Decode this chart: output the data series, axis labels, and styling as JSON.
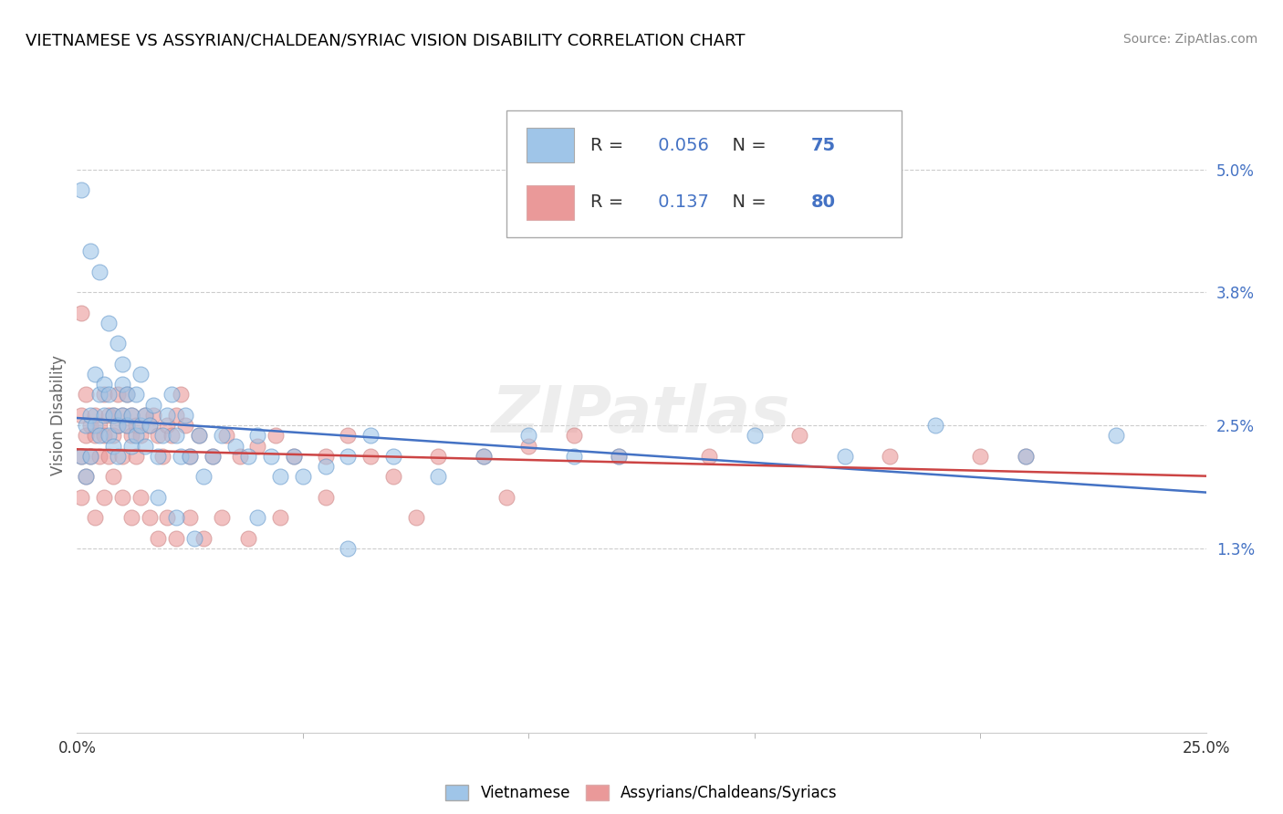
{
  "title": "VIETNAMESE VS ASSYRIAN/CHALDEAN/SYRIAC VISION DISABILITY CORRELATION CHART",
  "source": "Source: ZipAtlas.com",
  "ylabel": "Vision Disability",
  "xlim": [
    0.0,
    0.25
  ],
  "ylim": [
    -0.005,
    0.057
  ],
  "xtick_positions": [
    0.0,
    0.25
  ],
  "xticklabels": [
    "0.0%",
    "25.0%"
  ],
  "yticks_right": [
    0.013,
    0.025,
    0.038,
    0.05
  ],
  "yticklabels_right": [
    "1.3%",
    "2.5%",
    "3.8%",
    "5.0%"
  ],
  "R_blue": 0.056,
  "N_blue": 75,
  "R_pink": 0.137,
  "N_pink": 80,
  "blue_color": "#9fc5e8",
  "pink_color": "#ea9999",
  "line_blue": "#4472c4",
  "line_pink": "#cc4444",
  "legend_entry1": "Vietnamese",
  "legend_entry2": "Assyrians/Chaldeans/Syriacs",
  "blue_x": [
    0.001,
    0.002,
    0.002,
    0.003,
    0.003,
    0.004,
    0.004,
    0.005,
    0.005,
    0.006,
    0.006,
    0.007,
    0.007,
    0.008,
    0.008,
    0.009,
    0.009,
    0.01,
    0.01,
    0.011,
    0.011,
    0.012,
    0.012,
    0.013,
    0.013,
    0.014,
    0.015,
    0.015,
    0.016,
    0.017,
    0.018,
    0.019,
    0.02,
    0.021,
    0.022,
    0.023,
    0.024,
    0.025,
    0.027,
    0.028,
    0.03,
    0.032,
    0.035,
    0.038,
    0.04,
    0.043,
    0.045,
    0.048,
    0.05,
    0.055,
    0.06,
    0.065,
    0.07,
    0.08,
    0.09,
    0.1,
    0.11,
    0.12,
    0.15,
    0.17,
    0.19,
    0.21,
    0.23,
    0.001,
    0.003,
    0.005,
    0.007,
    0.009,
    0.01,
    0.014,
    0.018,
    0.022,
    0.026,
    0.04,
    0.06
  ],
  "blue_y": [
    0.022,
    0.02,
    0.025,
    0.022,
    0.026,
    0.025,
    0.03,
    0.024,
    0.028,
    0.026,
    0.029,
    0.024,
    0.028,
    0.023,
    0.026,
    0.025,
    0.022,
    0.026,
    0.029,
    0.025,
    0.028,
    0.023,
    0.026,
    0.024,
    0.028,
    0.025,
    0.026,
    0.023,
    0.025,
    0.027,
    0.022,
    0.024,
    0.026,
    0.028,
    0.024,
    0.022,
    0.026,
    0.022,
    0.024,
    0.02,
    0.022,
    0.024,
    0.023,
    0.022,
    0.024,
    0.022,
    0.02,
    0.022,
    0.02,
    0.021,
    0.022,
    0.024,
    0.022,
    0.02,
    0.022,
    0.024,
    0.022,
    0.022,
    0.024,
    0.022,
    0.025,
    0.022,
    0.024,
    0.048,
    0.042,
    0.04,
    0.035,
    0.033,
    0.031,
    0.03,
    0.018,
    0.016,
    0.014,
    0.016,
    0.013
  ],
  "pink_x": [
    0.001,
    0.001,
    0.002,
    0.002,
    0.003,
    0.003,
    0.004,
    0.004,
    0.005,
    0.005,
    0.006,
    0.006,
    0.007,
    0.007,
    0.008,
    0.008,
    0.009,
    0.009,
    0.01,
    0.01,
    0.011,
    0.011,
    0.012,
    0.012,
    0.013,
    0.013,
    0.014,
    0.015,
    0.016,
    0.017,
    0.018,
    0.019,
    0.02,
    0.021,
    0.022,
    0.023,
    0.024,
    0.025,
    0.027,
    0.03,
    0.033,
    0.036,
    0.04,
    0.044,
    0.048,
    0.055,
    0.06,
    0.065,
    0.07,
    0.08,
    0.09,
    0.1,
    0.11,
    0.12,
    0.14,
    0.16,
    0.18,
    0.2,
    0.21,
    0.001,
    0.002,
    0.004,
    0.006,
    0.008,
    0.01,
    0.012,
    0.014,
    0.016,
    0.018,
    0.02,
    0.022,
    0.025,
    0.028,
    0.032,
    0.038,
    0.045,
    0.055,
    0.075,
    0.095,
    0.001
  ],
  "pink_y": [
    0.022,
    0.026,
    0.024,
    0.028,
    0.025,
    0.022,
    0.026,
    0.024,
    0.022,
    0.025,
    0.028,
    0.024,
    0.026,
    0.022,
    0.024,
    0.026,
    0.025,
    0.028,
    0.026,
    0.022,
    0.025,
    0.028,
    0.024,
    0.026,
    0.025,
    0.022,
    0.024,
    0.026,
    0.025,
    0.026,
    0.024,
    0.022,
    0.025,
    0.024,
    0.026,
    0.028,
    0.025,
    0.022,
    0.024,
    0.022,
    0.024,
    0.022,
    0.023,
    0.024,
    0.022,
    0.022,
    0.024,
    0.022,
    0.02,
    0.022,
    0.022,
    0.023,
    0.024,
    0.022,
    0.022,
    0.024,
    0.022,
    0.022,
    0.022,
    0.018,
    0.02,
    0.016,
    0.018,
    0.02,
    0.018,
    0.016,
    0.018,
    0.016,
    0.014,
    0.016,
    0.014,
    0.016,
    0.014,
    0.016,
    0.014,
    0.016,
    0.018,
    0.016,
    0.018,
    0.036
  ]
}
